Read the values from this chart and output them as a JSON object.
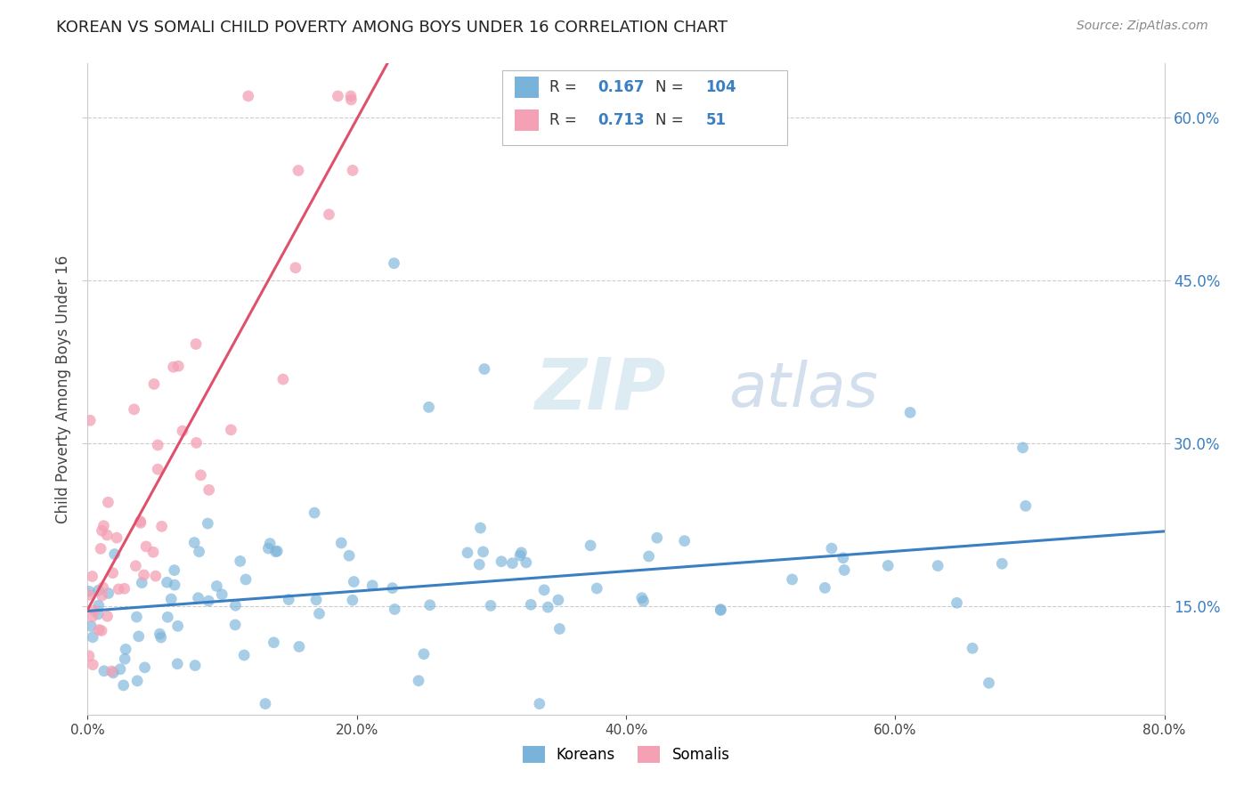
{
  "title": "KOREAN VS SOMALI CHILD POVERTY AMONG BOYS UNDER 16 CORRELATION CHART",
  "source": "Source: ZipAtlas.com",
  "ylabel": "Child Poverty Among Boys Under 16",
  "xlim": [
    0.0,
    0.8
  ],
  "ylim": [
    0.05,
    0.65
  ],
  "xticks": [
    0.0,
    0.2,
    0.4,
    0.6,
    0.8
  ],
  "yticks": [
    0.15,
    0.3,
    0.45,
    0.6
  ],
  "korean_color": "#7ab3d9",
  "somali_color": "#f4a0b5",
  "korean_line_color": "#3a7fc1",
  "somali_line_color": "#e0506a",
  "korean_R": 0.167,
  "korean_N": 104,
  "somali_R": 0.713,
  "somali_N": 51,
  "watermark_zip": "ZIP",
  "watermark_atlas": "atlas",
  "background_color": "#ffffff",
  "grid_color": "#cccccc",
  "right_tick_color": "#3a7fc1",
  "title_color": "#222222",
  "source_color": "#888888",
  "ylabel_color": "#444444"
}
